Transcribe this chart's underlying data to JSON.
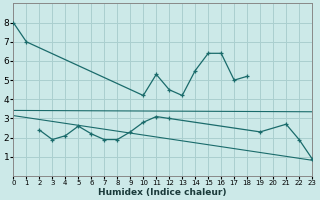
{
  "xlabel": "Humidex (Indice chaleur)",
  "background_color": "#cce9e8",
  "grid_color": "#aacfcf",
  "line_color": "#1a6b6b",
  "series1_x": [
    0,
    1,
    10,
    11,
    12,
    13,
    14,
    15,
    16,
    17,
    18
  ],
  "series1_y": [
    8.0,
    7.0,
    4.2,
    5.3,
    4.5,
    4.2,
    5.5,
    6.4,
    6.4,
    5.0,
    5.2
  ],
  "series2_x": [
    2,
    3,
    4,
    5,
    6,
    7,
    8,
    9,
    10,
    11,
    12,
    19,
    21,
    22,
    23
  ],
  "series2_y": [
    2.4,
    1.9,
    2.1,
    2.6,
    2.2,
    1.9,
    1.9,
    2.3,
    2.8,
    3.1,
    3.0,
    2.3,
    2.7,
    1.9,
    0.9
  ],
  "trend1_x": [
    0,
    23
  ],
  "trend1_y": [
    3.42,
    3.35
  ],
  "trend2_x": [
    0,
    23
  ],
  "trend2_y": [
    3.15,
    0.82
  ],
  "ylim": [
    0,
    9
  ],
  "xlim": [
    0,
    23
  ],
  "yticks": [
    1,
    2,
    3,
    4,
    5,
    6,
    7,
    8
  ],
  "xticks": [
    0,
    1,
    2,
    3,
    4,
    5,
    6,
    7,
    8,
    9,
    10,
    11,
    12,
    13,
    14,
    15,
    16,
    17,
    18,
    19,
    20,
    21,
    22,
    23
  ]
}
